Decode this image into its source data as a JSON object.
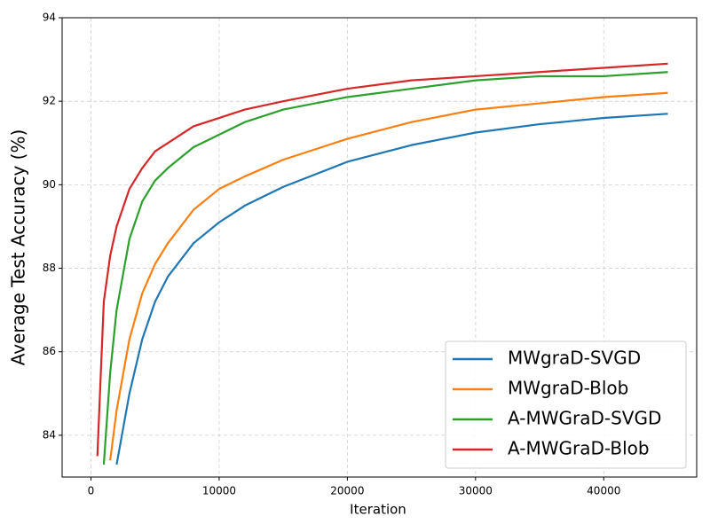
{
  "chart_data": {
    "type": "line",
    "xlabel": "Iteration",
    "ylabel": "Average Test Accuracy (%)",
    "x": [
      500,
      1000,
      1500,
      2000,
      3000,
      4000,
      5000,
      6000,
      8000,
      10000,
      12000,
      15000,
      20000,
      25000,
      30000,
      35000,
      40000,
      45000
    ],
    "series": [
      {
        "name": "MWgraD-SVGD",
        "color": "#1f77b4",
        "values": [
          null,
          null,
          null,
          83.3,
          85.0,
          86.3,
          87.2,
          87.8,
          88.6,
          89.1,
          89.5,
          89.95,
          90.55,
          90.95,
          91.25,
          91.45,
          91.6,
          91.7
        ]
      },
      {
        "name": "MWgraD-Blob",
        "color": "#ff7f0e",
        "values": [
          null,
          null,
          83.4,
          84.6,
          86.3,
          87.4,
          88.1,
          88.6,
          89.4,
          89.9,
          90.2,
          90.6,
          91.1,
          91.5,
          91.8,
          91.95,
          92.1,
          92.2
        ]
      },
      {
        "name": "A-MWGraD-SVGD",
        "color": "#2ca02c",
        "values": [
          null,
          83.3,
          85.5,
          87.0,
          88.7,
          89.6,
          90.1,
          90.4,
          90.9,
          91.2,
          91.5,
          91.8,
          92.1,
          92.3,
          92.5,
          92.6,
          92.6,
          92.7
        ]
      },
      {
        "name": "A-MWGraD-Blob",
        "color": "#d62728",
        "values": [
          83.5,
          87.2,
          88.3,
          89.0,
          89.9,
          90.4,
          90.8,
          91.0,
          91.4,
          91.6,
          91.8,
          92.0,
          92.3,
          92.5,
          92.6,
          92.7,
          92.8,
          92.9
        ]
      }
    ],
    "xlim": [
      -2250,
      47250
    ],
    "xticks": [
      0,
      10000,
      20000,
      30000,
      40000
    ],
    "ylim": [
      83,
      94
    ],
    "yticks": [
      84,
      86,
      88,
      90,
      92,
      94
    ],
    "grid": true,
    "legend": "lower right"
  }
}
